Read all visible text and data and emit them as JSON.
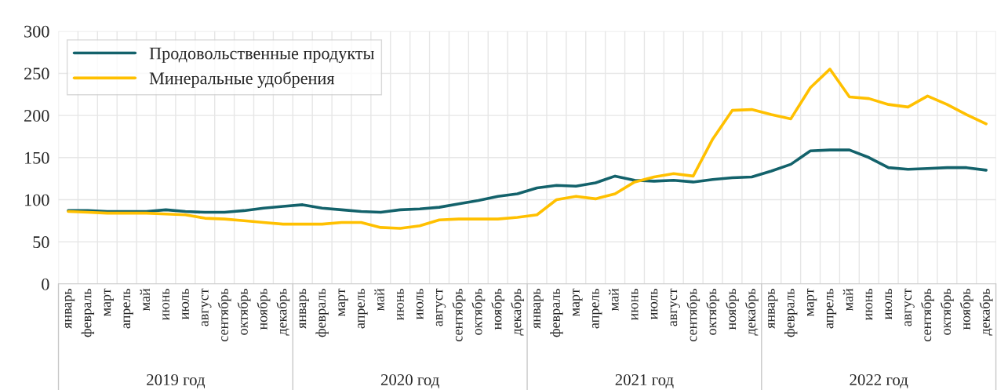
{
  "chart_data": {
    "type": "line",
    "categories": [
      "январь",
      "февраль",
      "март",
      "апрель",
      "май",
      "июнь",
      "июль",
      "август",
      "сентябрь",
      "октябрь",
      "ноябрь",
      "декабрь",
      "январь",
      "февраль",
      "март",
      "апрель",
      "май",
      "июнь",
      "июль",
      "август",
      "сентябрь",
      "октябрь",
      "ноябрь",
      "декабрь",
      "январь",
      "февраль",
      "март",
      "апрель",
      "май",
      "июнь",
      "июль",
      "август",
      "сентябрь",
      "октябрь",
      "ноябрь",
      "декабрь",
      "январь",
      "февраль",
      "март",
      "апрель",
      "май",
      "июнь",
      "июль",
      "август",
      "сентябрь",
      "октябрь",
      "ноябрь",
      "декабрь"
    ],
    "annotations": [
      "2019 год",
      "2020 год",
      "2021 год",
      "2022 год"
    ],
    "series": [
      {
        "name": "Продовольственные продукты",
        "color": "#13626b",
        "values": [
          87,
          87,
          86,
          86,
          86,
          88,
          86,
          85,
          85,
          87,
          90,
          92,
          94,
          90,
          88,
          86,
          85,
          88,
          89,
          91,
          95,
          99,
          104,
          107,
          114,
          117,
          116,
          120,
          128,
          123,
          122,
          123,
          121,
          124,
          126,
          127,
          134,
          142,
          158,
          159,
          159,
          150,
          138,
          136,
          137,
          138,
          138,
          135
        ]
      },
      {
        "name": "Минеральные удобрения",
        "color": "#ffc000",
        "values": [
          86,
          85,
          84,
          84,
          84,
          83,
          82,
          78,
          77,
          75,
          73,
          71,
          71,
          71,
          73,
          73,
          67,
          66,
          69,
          76,
          77,
          77,
          77,
          79,
          82,
          100,
          104,
          101,
          107,
          121,
          127,
          131,
          128,
          172,
          206,
          207,
          201,
          196,
          233,
          255,
          222,
          220,
          213,
          210,
          223,
          213,
          201,
          190
        ]
      }
    ],
    "ylim": [
      0,
      300
    ],
    "yticks": [
      0,
      50,
      100,
      150,
      200,
      250,
      300
    ],
    "grid": true,
    "legend": "top left",
    "line_style": "solid",
    "marker": "none"
  }
}
